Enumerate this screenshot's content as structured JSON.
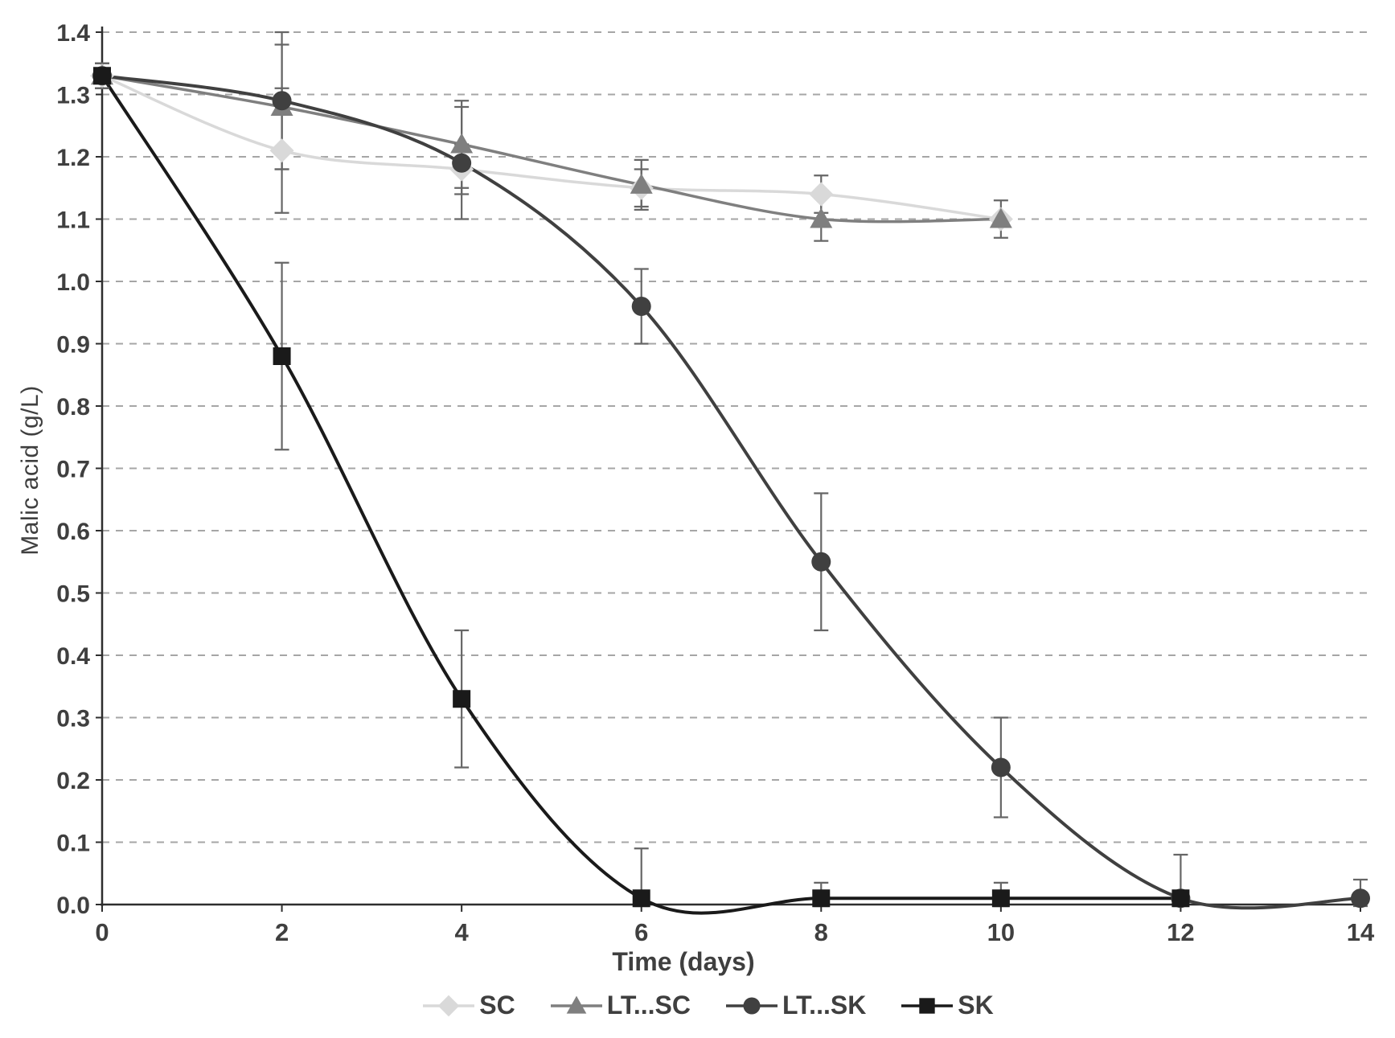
{
  "chart_data": {
    "type": "line",
    "title": "",
    "xlabel": "Time (days)",
    "ylabel": "Malic acid (g/L)",
    "x_ticks": [
      0,
      2,
      4,
      6,
      8,
      10,
      12,
      14
    ],
    "xlim": [
      0,
      14
    ],
    "ylim": [
      0,
      1.4
    ],
    "y_tick_step": 0.1,
    "grid": "horizontal-dashed",
    "line_style": "smooth",
    "legend_position": "bottom",
    "styles": {
      "gridline_color": "#a6a6a6",
      "axis_color": "#2e2e2e",
      "tick_label_color": "#3f3f3f",
      "error_bar_color": "#666666"
    },
    "series": [
      {
        "name": "SC",
        "marker": "diamond",
        "color": "#d9d9d9",
        "line_width": 3.5,
        "points": [
          {
            "x": 0,
            "y": 1.33,
            "err": 0.02
          },
          {
            "x": 2,
            "y": 1.21,
            "err": 0.1
          },
          {
            "x": 4,
            "y": 1.18,
            "err": 0.04
          },
          {
            "x": 6,
            "y": 1.15,
            "err": 0.03
          },
          {
            "x": 8,
            "y": 1.14,
            "err": 0.03
          },
          {
            "x": 10,
            "y": 1.1,
            "err": 0
          }
        ]
      },
      {
        "name": "LT...SC",
        "marker": "triangle",
        "color": "#7f7f7f",
        "line_width": 3.5,
        "points": [
          {
            "x": 0,
            "y": 1.33,
            "err": 0.02
          },
          {
            "x": 2,
            "y": 1.28,
            "err": 0.1
          },
          {
            "x": 4,
            "y": 1.22,
            "err": 0.07
          },
          {
            "x": 6,
            "y": 1.155,
            "err": 0.04
          },
          {
            "x": 8,
            "y": 1.1,
            "err": 0.035
          },
          {
            "x": 10,
            "y": 1.1,
            "err": 0.03
          }
        ]
      },
      {
        "name": "LT...SK",
        "marker": "circle",
        "color": "#404040",
        "line_width": 4,
        "points": [
          {
            "x": 0,
            "y": 1.33,
            "err": 0.02
          },
          {
            "x": 2,
            "y": 1.29,
            "err": 0.11
          },
          {
            "x": 4,
            "y": 1.19,
            "err": 0.09
          },
          {
            "x": 6,
            "y": 0.96,
            "err": 0.06
          },
          {
            "x": 8,
            "y": 0.55,
            "err": 0.11
          },
          {
            "x": 10,
            "y": 0.22,
            "err": 0.08
          },
          {
            "x": 12,
            "y": 0.01,
            "err": 0
          },
          {
            "x": 14,
            "y": 0.01,
            "err": 0.03
          }
        ]
      },
      {
        "name": "SK",
        "marker": "square",
        "color": "#1a1a1a",
        "line_width": 4,
        "points": [
          {
            "x": 0,
            "y": 1.33,
            "err": 0.02
          },
          {
            "x": 2,
            "y": 0.88,
            "err": 0.15
          },
          {
            "x": 4,
            "y": 0.33,
            "err": 0.11
          },
          {
            "x": 6,
            "y": 0.01,
            "err": 0.08
          },
          {
            "x": 8,
            "y": 0.01,
            "err": 0.025
          },
          {
            "x": 10,
            "y": 0.01,
            "err": 0.025
          },
          {
            "x": 12,
            "y": 0.01,
            "err": 0.07
          }
        ]
      }
    ]
  }
}
